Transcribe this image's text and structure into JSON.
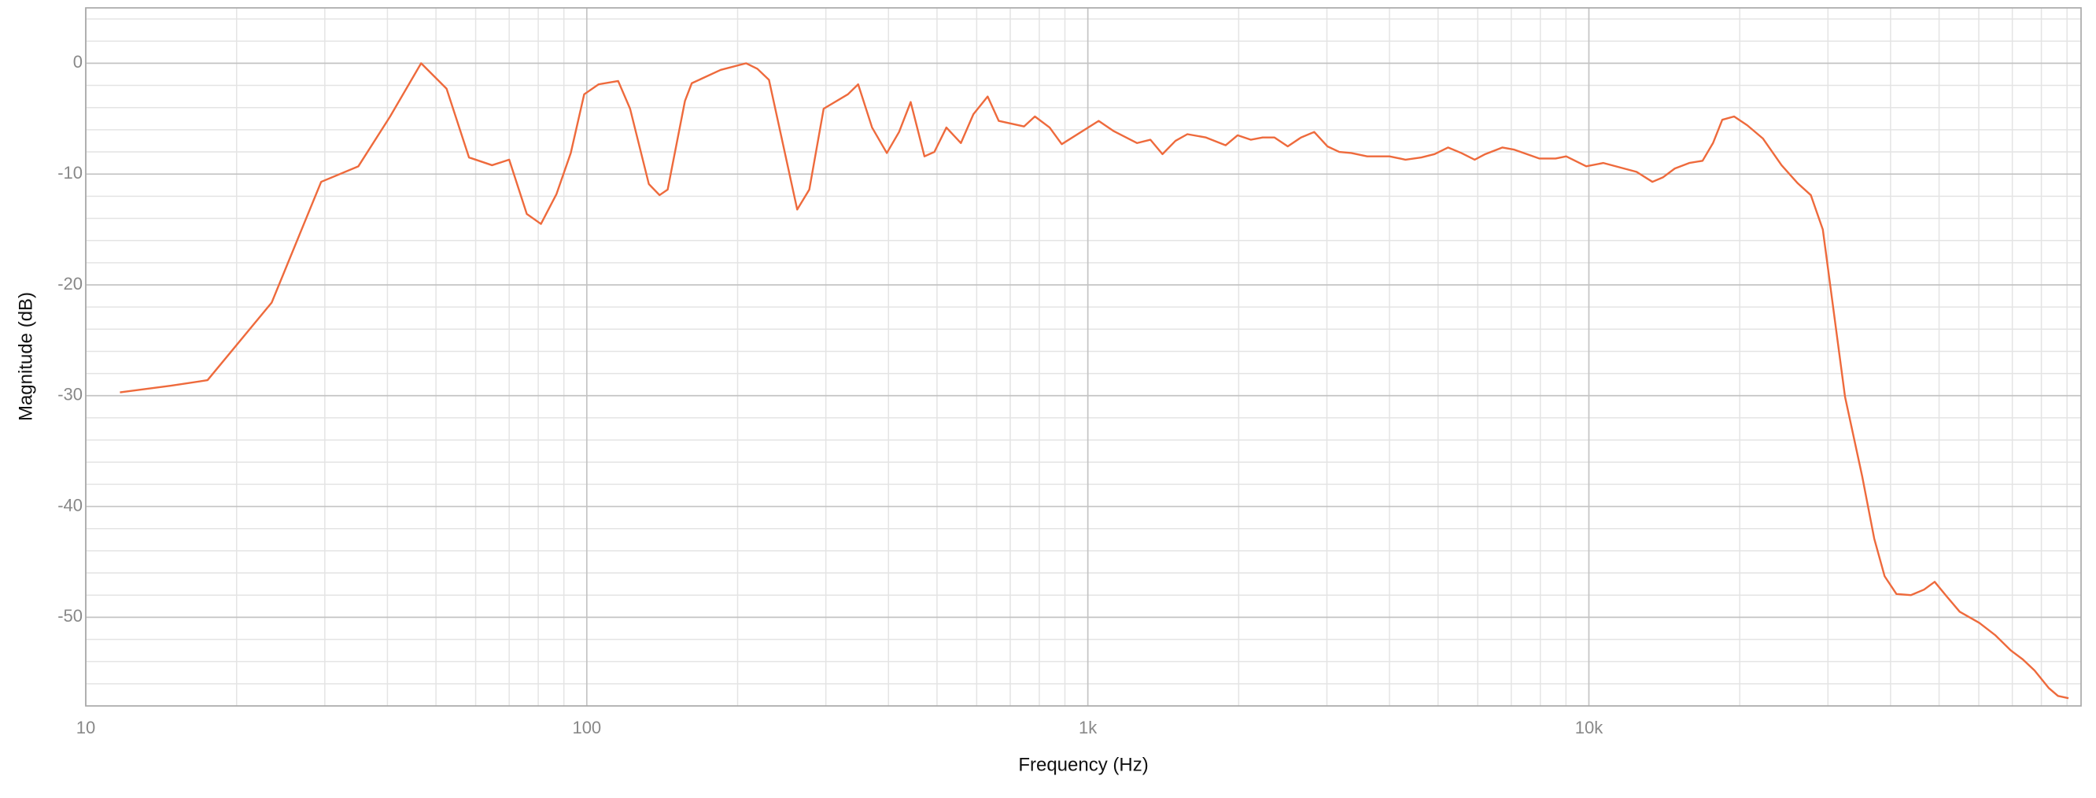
{
  "chart_data": {
    "type": "line",
    "x_label": "Frequency (Hz)",
    "y_label": "Magnitude (dB)",
    "log_x": true,
    "grid": true,
    "color": "#ee6a3c",
    "xlim": [
      10,
      96000
    ],
    "ylim": [
      -58,
      5
    ],
    "xticks": [
      10,
      100,
      {
        "value": 1000,
        "label": "1k"
      },
      {
        "value": 10000,
        "label": "10k"
      }
    ],
    "yticks": [
      0,
      -10,
      -20,
      -30,
      -40,
      -50
    ],
    "x_minor_ticks": [
      20,
      30,
      40,
      50,
      60,
      70,
      80,
      90,
      200,
      300,
      400,
      500,
      600,
      700,
      800,
      900,
      2000,
      3000,
      4000,
      5000,
      6000,
      7000,
      8000,
      9000,
      20000,
      30000,
      40000,
      50000,
      60000,
      70000,
      80000,
      90000
    ],
    "y_minor_ticks": [
      4,
      2,
      -2,
      -4,
      -6,
      -8,
      -12,
      -14,
      -16,
      -18,
      -22,
      -24,
      -26,
      -28,
      -32,
      -34,
      -36,
      -38,
      -42,
      -44,
      -46,
      -48,
      -52,
      -54,
      -56
    ],
    "x": [
      11.7,
      14.8,
      17.5,
      23.5,
      29.5,
      35,
      40.5,
      46.7,
      52.5,
      58.2,
      64.7,
      70,
      75.9,
      81,
      87,
      92.9,
      98.8,
      105.6,
      115.5,
      122,
      133,
      139.7,
      145,
      157,
      162,
      185,
      208,
      219,
      231,
      263,
      278,
      297,
      332,
      348,
      371,
      397,
      420,
      443,
      472,
      494,
      522,
      558,
      591,
      631,
      664,
      746,
      784,
      839,
      887,
      1051,
      1124,
      1254,
      1333,
      1409,
      1496,
      1580,
      1721,
      1884,
      1990,
      2114,
      2233,
      2358,
      2506,
      2663,
      2830,
      3007,
      3176,
      3356,
      3610,
      4000,
      4305,
      4630,
      4922,
      5234,
      5565,
      5916,
      6211,
      6722,
      7100,
      7970,
      8580,
      9010,
      9880,
      10690,
      12450,
      13390,
      14050,
      14840,
      15860,
      16860,
      17690,
      18460,
      19490,
      20710,
      22260,
      24240,
      26070,
      27730,
      29300,
      32450,
      35120,
      37110,
      38930,
      41100,
      43910,
      46660,
      48990,
      51740,
      54960,
      60140,
      64670,
      69550,
      73450,
      77540,
      82820,
      86350,
      90620
    ],
    "values": [
      -29.7,
      -29.1,
      -28.6,
      -21.6,
      -10.7,
      -9.3,
      -4.8,
      0,
      -2.3,
      -8.5,
      -9.2,
      -8.7,
      -13.6,
      -14.5,
      -11.8,
      -8.1,
      -2.8,
      -1.9,
      -1.6,
      -4.1,
      -10.9,
      -11.9,
      -11.4,
      -3.4,
      -1.8,
      -0.6,
      0,
      -0.5,
      -1.5,
      -13.2,
      -11.4,
      -4.1,
      -2.8,
      -1.9,
      -5.8,
      -8.1,
      -6.2,
      -3.5,
      -8.4,
      -8.0,
      -5.8,
      -7.2,
      -4.6,
      -3.0,
      -5.2,
      -5.7,
      -4.8,
      -5.8,
      -7.3,
      -5.2,
      -6.1,
      -7.2,
      -6.9,
      -8.2,
      -7.0,
      -6.4,
      -6.7,
      -7.4,
      -6.5,
      -6.9,
      -6.7,
      -6.7,
      -7.5,
      -6.7,
      -6.2,
      -7.5,
      -8.0,
      -8.1,
      -8.4,
      -8.4,
      -8.7,
      -8.5,
      -8.2,
      -7.6,
      -8.1,
      -8.7,
      -8.2,
      -7.6,
      -7.8,
      -8.6,
      -8.6,
      -8.4,
      -9.3,
      -9.0,
      -9.8,
      -10.7,
      -10.3,
      -9.5,
      -9.0,
      -8.8,
      -7.2,
      -5.1,
      -4.8,
      -5.6,
      -6.8,
      -9.2,
      -10.8,
      -11.9,
      -15.0,
      -30.1,
      -37.3,
      -42.9,
      -46.3,
      -47.9,
      -48.0,
      -47.5,
      -46.8,
      -48.1,
      -49.5,
      -50.5,
      -51.6,
      -53.0,
      -53.8,
      -54.8,
      -56.4,
      -57.1,
      -57.3
    ]
  }
}
